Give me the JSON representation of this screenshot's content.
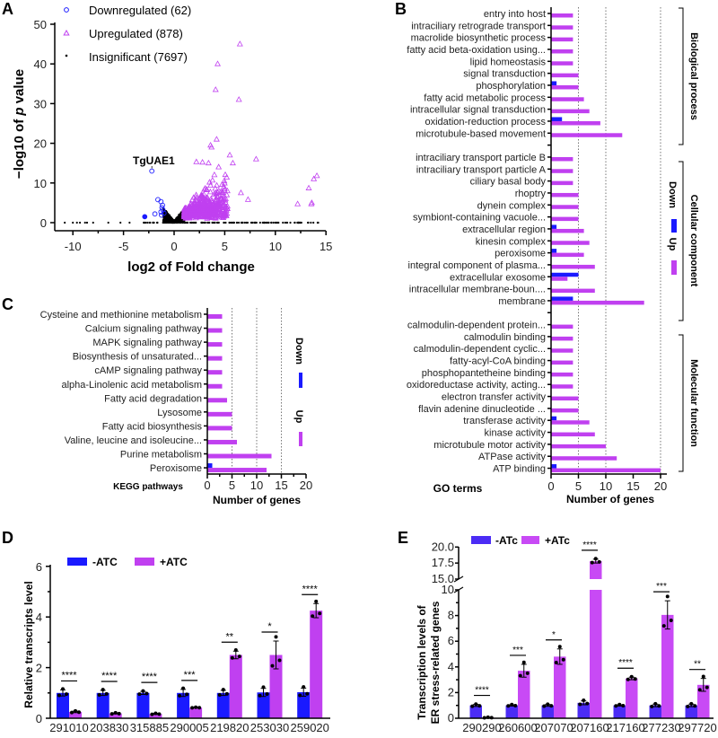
{
  "colors": {
    "down": "#1a1aff",
    "up": "#c040f0",
    "insig": "#000000",
    "e_down": "#4b2cf5",
    "e_up": "#c84af5"
  },
  "chart_data": [
    {
      "panel": "A",
      "type": "scatter",
      "xlabel": "log2 of Fold change",
      "ylabel_pre": "−log10 of ",
      "ylabel_italic": "p",
      "ylabel_post": " value",
      "xlim": [
        -11,
        15
      ],
      "ylim": [
        0,
        50
      ],
      "xticks": [
        -10,
        -5,
        0,
        5,
        10,
        15
      ],
      "yticks": [
        0,
        10,
        20,
        30,
        40,
        50
      ],
      "legend": [
        {
          "label": "Downregulated (62)",
          "marker": "circle"
        },
        {
          "label": "Upregulated (878)",
          "marker": "triangle"
        },
        {
          "label": "Insignificant (7697)",
          "marker": "dot"
        }
      ],
      "annotation": {
        "label": "TgUAE1",
        "x": -2.2,
        "y": 13
      },
      "down_points": [
        [
          -2.2,
          13
        ],
        [
          -1.6,
          5.8
        ],
        [
          -1.3,
          5.3
        ],
        [
          -1.9,
          2.2
        ],
        [
          -1.2,
          3.8
        ],
        [
          -1.1,
          3.2
        ],
        [
          -1.3,
          2.7
        ],
        [
          -1.15,
          4.4
        ],
        [
          -1.0,
          2.4
        ],
        [
          -1.25,
          1.9
        ]
      ],
      "down_filled": [
        [
          -2.9,
          1.5
        ]
      ],
      "up_outliers": [
        [
          6.5,
          45
        ],
        [
          4.3,
          40
        ],
        [
          4.1,
          33.5
        ],
        [
          6.4,
          31
        ],
        [
          4.2,
          21
        ],
        [
          3.6,
          19.5
        ],
        [
          3.7,
          19
        ],
        [
          5.5,
          17
        ],
        [
          8.1,
          16
        ],
        [
          5.8,
          15
        ],
        [
          2.2,
          15.3
        ],
        [
          2.8,
          15.2
        ],
        [
          3.4,
          15
        ],
        [
          14.1,
          11.8
        ],
        [
          13.8,
          11
        ],
        [
          13.3,
          8.7
        ],
        [
          13.6,
          5
        ],
        [
          13.55,
          4.7
        ],
        [
          12.2,
          4.7
        ],
        [
          7.3,
          5.8
        ],
        [
          6.6,
          7.5
        ],
        [
          5.2,
          11.4
        ],
        [
          4.4,
          14
        ]
      ]
    },
    {
      "panel": "B",
      "type": "bar",
      "orientation": "horizontal",
      "xlabel": "Number of genes",
      "ylabel": "GO terms",
      "xlim": [
        0,
        20
      ],
      "xticks": [
        0,
        5,
        10,
        15,
        20
      ],
      "legend": [
        "Down",
        "Up"
      ],
      "groups": [
        {
          "name": "Biological process",
          "terms": [
            {
              "label": "entry into host",
              "up": 4,
              "down": 0
            },
            {
              "label": "intraciliary retrograde transport",
              "up": 4,
              "down": 0
            },
            {
              "label": "macrolide biosynthetic process",
              "up": 4,
              "down": 0
            },
            {
              "label": "fatty acid beta-oxidation using...",
              "up": 4,
              "down": 0
            },
            {
              "label": "lipid homeostasis",
              "up": 4,
              "down": 0
            },
            {
              "label": "signal transduction",
              "up": 5,
              "down": 0
            },
            {
              "label": "phosphorylation",
              "up": 5,
              "down": 1
            },
            {
              "label": "fatty acid metabolic process",
              "up": 6,
              "down": 0
            },
            {
              "label": "intracellular signal transduction",
              "up": 7,
              "down": 0
            },
            {
              "label": "oxidation-reduction process",
              "up": 9,
              "down": 2
            },
            {
              "label": "microtubule-based movement",
              "up": 13,
              "down": 0
            }
          ]
        },
        {
          "name": "Cellular component",
          "terms": [
            {
              "label": "intraciliary transport particle B",
              "up": 4,
              "down": 0
            },
            {
              "label": "intraciliary transport particle A",
              "up": 4,
              "down": 0
            },
            {
              "label": "ciliary basal body",
              "up": 4,
              "down": 0
            },
            {
              "label": "rhoptry",
              "up": 5,
              "down": 0
            },
            {
              "label": "dynein complex",
              "up": 5,
              "down": 0
            },
            {
              "label": "symbiont-containing vacuole...",
              "up": 5,
              "down": 0
            },
            {
              "label": "extracellular region",
              "up": 6,
              "down": 1
            },
            {
              "label": "kinesin complex",
              "up": 7,
              "down": 0
            },
            {
              "label": "peroxisome",
              "up": 6,
              "down": 1
            },
            {
              "label": "integral component of plasma...",
              "up": 8,
              "down": 0
            },
            {
              "label": "extracellular exosome",
              "up": 3,
              "down": 5
            },
            {
              "label": "intracellular membrane-boun....",
              "up": 8,
              "down": 0
            },
            {
              "label": "membrane",
              "up": 17,
              "down": 4
            }
          ]
        },
        {
          "name": "Molecular function",
          "terms": [
            {
              "label": "calmodulin-dependent protein...",
              "up": 4,
              "down": 0
            },
            {
              "label": "calmodulin binding",
              "up": 4,
              "down": 0
            },
            {
              "label": "calmodulin-dependent cyclic...",
              "up": 4,
              "down": 0
            },
            {
              "label": "fatty-acyl-CoA binding",
              "up": 4,
              "down": 0
            },
            {
              "label": "phosphopantetheine binding",
              "up": 4,
              "down": 0
            },
            {
              "label": "oxidoreductase activity, acting...",
              "up": 4,
              "down": 0
            },
            {
              "label": "electron transfer activity",
              "up": 5,
              "down": 0
            },
            {
              "label": "flavin adenine dinucleotide ...",
              "up": 5,
              "down": 0
            },
            {
              "label": "transferase activity",
              "up": 7,
              "down": 1
            },
            {
              "label": "kinase activity",
              "up": 8,
              "down": 0
            },
            {
              "label": "microtubule motor activity",
              "up": 10,
              "down": 0
            },
            {
              "label": "ATPase activity",
              "up": 12,
              "down": 0
            },
            {
              "label": "ATP binding",
              "up": 20,
              "down": 1
            }
          ]
        }
      ]
    },
    {
      "panel": "C",
      "type": "bar",
      "orientation": "horizontal",
      "xlabel": "Number of genes",
      "ylabel": "KEGG pathways",
      "xlim": [
        0,
        20
      ],
      "xticks": [
        0,
        5,
        10,
        15,
        20
      ],
      "legend": [
        "Down",
        "Up"
      ],
      "terms": [
        {
          "label": "Cysteine and methionine metabolism",
          "up": 3,
          "down": 0
        },
        {
          "label": "Calcium signaling pathway",
          "up": 3,
          "down": 0
        },
        {
          "label": "MAPK signaling pathway",
          "up": 3,
          "down": 0
        },
        {
          "label": "Biosynthesis of unsaturated...",
          "up": 3,
          "down": 0
        },
        {
          "label": "cAMP signaling pathway",
          "up": 3,
          "down": 0
        },
        {
          "label": "alpha-Linolenic acid metabolism",
          "up": 3,
          "down": 0
        },
        {
          "label": "Fatty acid degradation",
          "up": 4,
          "down": 0
        },
        {
          "label": "Lysosome",
          "up": 5,
          "down": 0
        },
        {
          "label": "Fatty acid biosynthesis",
          "up": 5,
          "down": 0
        },
        {
          "label": "Valine, leucine and isoleucine...",
          "up": 6,
          "down": 0
        },
        {
          "label": "Purine metabolism",
          "up": 13,
          "down": 0
        },
        {
          "label": "Peroxisome",
          "up": 12,
          "down": 1
        }
      ]
    },
    {
      "panel": "D",
      "type": "bar",
      "ylabel": "Relative transcripts level",
      "ylim": [
        0,
        6
      ],
      "yticks": [
        0,
        2,
        4,
        6
      ],
      "series": [
        {
          "name": "-ATC"
        },
        {
          "name": "+ATC"
        }
      ],
      "categories": [
        "291010",
        "203830",
        "315885",
        "290005",
        "219820",
        "253030",
        "259020"
      ],
      "minus": [
        1.0,
        1.0,
        1.0,
        1.0,
        1.0,
        1.02,
        1.03
      ],
      "minus_err": [
        0.12,
        0.1,
        0.06,
        0.14,
        0.1,
        0.16,
        0.16
      ],
      "plus": [
        0.25,
        0.19,
        0.17,
        0.42,
        2.5,
        2.5,
        4.25
      ],
      "plus_err": [
        0.03,
        0.02,
        0.02,
        0.01,
        0.15,
        0.55,
        0.28
      ],
      "significance": [
        "****",
        "****",
        "****",
        "***",
        "**",
        "*",
        "****"
      ]
    },
    {
      "panel": "E",
      "type": "bar",
      "ylabel_lines": [
        "Transcription levels of",
        "ER stress-related genes"
      ],
      "ylim": [
        0,
        20
      ],
      "axis_break": [
        10,
        15
      ],
      "yticks_lower": [
        "0",
        "2",
        "4",
        "6",
        "8",
        "10"
      ],
      "yticks_upper": [
        "15.0",
        "17.5",
        "20.0"
      ],
      "series": [
        {
          "name": "-ATc"
        },
        {
          "name": "+ATc"
        }
      ],
      "categories": [
        "290290",
        "260600",
        "207070",
        "207160",
        "217160",
        "277230",
        "297720"
      ],
      "minus": [
        1.0,
        1.0,
        1.0,
        1.2,
        1.0,
        1.0,
        1.0
      ],
      "minus_err": [
        0.08,
        0.05,
        0.07,
        0.15,
        0.05,
        0.1,
        0.1
      ],
      "plus": [
        0.05,
        3.7,
        4.8,
        17.8,
        3.1,
        8.05,
        2.6
      ],
      "plus_err": [
        0.02,
        0.5,
        0.6,
        0.3,
        0.1,
        1.1,
        0.5
      ],
      "significance": [
        "****",
        "***",
        "*",
        "****",
        "****",
        "***",
        "**"
      ]
    }
  ],
  "panel_letters": [
    "A",
    "B",
    "C",
    "D",
    "E"
  ]
}
